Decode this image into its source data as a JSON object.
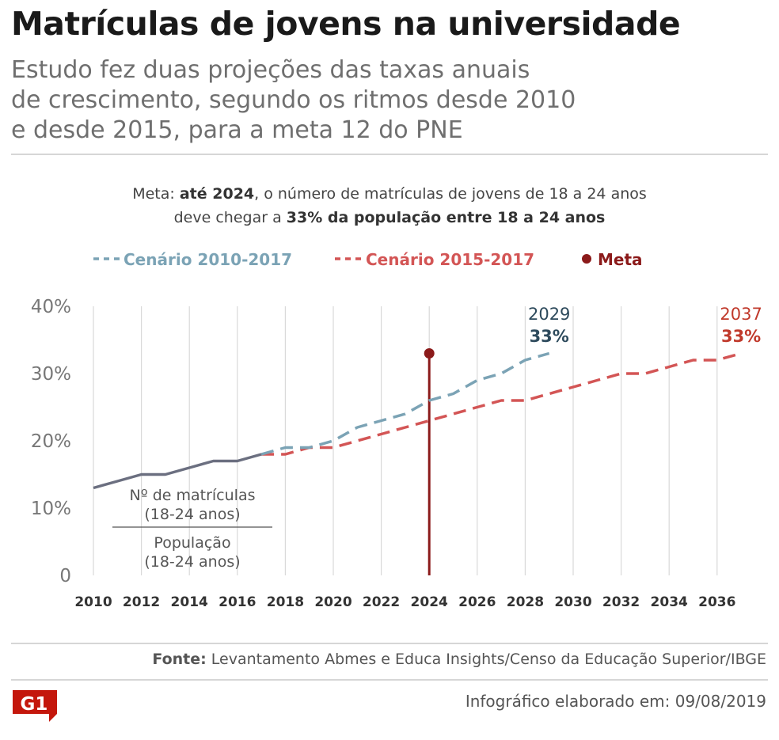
{
  "title": "Matrículas de jovens na universidade",
  "subtitle": [
    "Estudo fez duas projeções das taxas anuais",
    "de crescimento, segundo os ritmos desde 2010",
    "e desde 2015, para a meta 12 do PNE"
  ],
  "note": {
    "line1_prefix": "Meta: ",
    "line1_bold": "até 2024",
    "line1_suffix": ", o número de matrículas de jovens de 18 a 24 anos",
    "line2_prefix": "deve chegar a ",
    "line2_bold": "33% da população entre 18 a 24 anos"
  },
  "colors": {
    "historical": "#6b6f80",
    "scenario_2010": "#7ba3b5",
    "scenario_2015": "#d35555",
    "meta": "#8b1a1a",
    "label_2029": "#2d4a5c",
    "label_2037": "#c0392b"
  },
  "footer": {
    "source_label": "Fonte:",
    "source_text": " Levantamento Abmes e Educa Insights/Censo da Educação Superior/IBGE",
    "info": "Infográfico elaborado em: 09/08/2019",
    "logo": "G1"
  },
  "chart_data": {
    "type": "line",
    "title": "",
    "xlabel": "",
    "ylabel": "",
    "xlim": [
      2010,
      2038
    ],
    "ylim": [
      0,
      40
    ],
    "y_ticks": [
      0,
      10,
      20,
      30,
      40
    ],
    "y_tick_labels": [
      "0",
      "10%",
      "20%",
      "30%",
      "40%"
    ],
    "x_tick_labels": [
      "2010",
      "2012",
      "2014",
      "2016",
      "2018",
      "2020",
      "2022",
      "2024",
      "2026",
      "2028",
      "2030",
      "2032",
      "2034",
      "2036"
    ],
    "legend": [
      {
        "label": "Cenário 2010-2017",
        "series": "cenario_2010"
      },
      {
        "label": "Cenário 2015-2017",
        "series": "cenario_2015"
      },
      {
        "label": "Meta",
        "series": "meta"
      }
    ],
    "series": [
      {
        "name": "historico",
        "style": "solid",
        "x": [
          2010,
          2011,
          2012,
          2013,
          2014,
          2015,
          2016,
          2017
        ],
        "values": [
          13,
          14,
          15,
          15,
          16,
          17,
          17,
          18
        ]
      },
      {
        "name": "cenario_2010",
        "label": "Cenário 2010-2017",
        "style": "dashed",
        "x": [
          2017,
          2018,
          2019,
          2020,
          2021,
          2022,
          2023,
          2024,
          2025,
          2026,
          2027,
          2028,
          2029
        ],
        "values": [
          18,
          19,
          19,
          20,
          22,
          23,
          24,
          26,
          27,
          29,
          30,
          32,
          33
        ]
      },
      {
        "name": "cenario_2015",
        "label": "Cenário 2015-2017",
        "style": "dashed",
        "x": [
          2017,
          2018,
          2019,
          2020,
          2021,
          2022,
          2023,
          2024,
          2025,
          2026,
          2027,
          2028,
          2029,
          2030,
          2031,
          2032,
          2033,
          2034,
          2035,
          2036,
          2037
        ],
        "values": [
          18,
          18,
          19,
          19,
          20,
          21,
          22,
          23,
          24,
          25,
          26,
          26,
          27,
          28,
          29,
          30,
          30,
          31,
          32,
          32,
          33
        ]
      }
    ],
    "meta": {
      "label": "Meta",
      "x": 2024,
      "value": 33
    },
    "annotations": [
      {
        "year": "2029",
        "value": "33%",
        "x": 2029,
        "y": 33,
        "series": "cenario_2010"
      },
      {
        "year": "2037",
        "value": "33%",
        "x": 2037,
        "y": 33,
        "series": "cenario_2015"
      }
    ],
    "formula": {
      "numerator": "Nº de matrículas (18-24 anos)",
      "denominator": "População (18-24 anos)"
    }
  }
}
